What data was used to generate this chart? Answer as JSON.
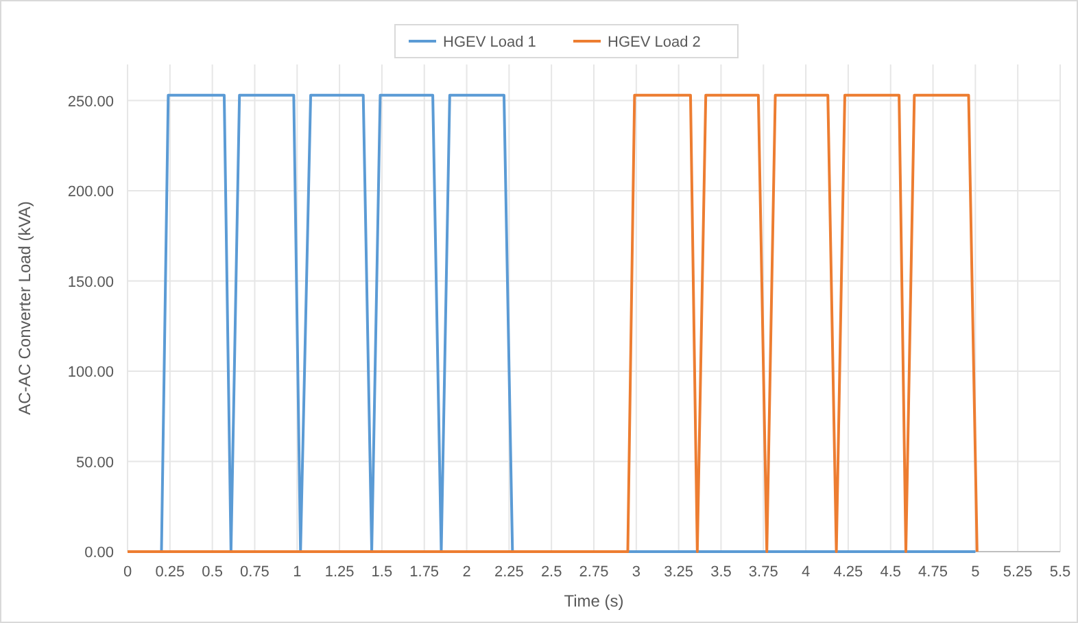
{
  "chart_data": {
    "type": "line",
    "xlabel": "Time (s)",
    "ylabel": "AC-AC Converter Load (kVA)",
    "xlim": [
      0,
      5.5
    ],
    "xticks": [
      0,
      0.25,
      0.5,
      0.75,
      1,
      1.25,
      1.5,
      1.75,
      2,
      2.25,
      2.5,
      2.75,
      3,
      3.25,
      3.5,
      3.75,
      4,
      4.25,
      4.5,
      4.75,
      5,
      5.25,
      5.5
    ],
    "ylim": [
      0,
      270
    ],
    "yticks": [
      {
        "value": 0,
        "label": "0.00"
      },
      {
        "value": 50,
        "label": "50.00"
      },
      {
        "value": 100,
        "label": "100.00"
      },
      {
        "value": 150,
        "label": "150.00"
      },
      {
        "value": 200,
        "label": "200.00"
      },
      {
        "value": 250,
        "label": "250.00"
      }
    ],
    "grid": true,
    "legend": "top",
    "marker": "none",
    "line_style": "solid",
    "series": [
      {
        "name": "HGEV Load 1",
        "color": "#5b9bd5",
        "x": [
          0,
          0.2,
          0.24,
          0.57,
          0.61,
          0.66,
          0.98,
          1.02,
          1.08,
          1.39,
          1.44,
          1.49,
          1.8,
          1.85,
          1.9,
          2.22,
          2.27,
          5
        ],
        "values": [
          0,
          0,
          253,
          253,
          0,
          253,
          253,
          0,
          253,
          253,
          0,
          253,
          253,
          0,
          253,
          253,
          0,
          0
        ]
      },
      {
        "name": "HGEV Load 2",
        "color": "#ed7d31",
        "x": [
          0,
          2.95,
          2.99,
          3.32,
          3.36,
          3.41,
          3.72,
          3.77,
          3.82,
          4.13,
          4.18,
          4.23,
          4.55,
          4.59,
          4.64,
          4.96,
          5.01
        ],
        "values": [
          0,
          0,
          253,
          253,
          0,
          253,
          253,
          0,
          253,
          253,
          0,
          253,
          253,
          0,
          253,
          253,
          0
        ]
      }
    ]
  }
}
